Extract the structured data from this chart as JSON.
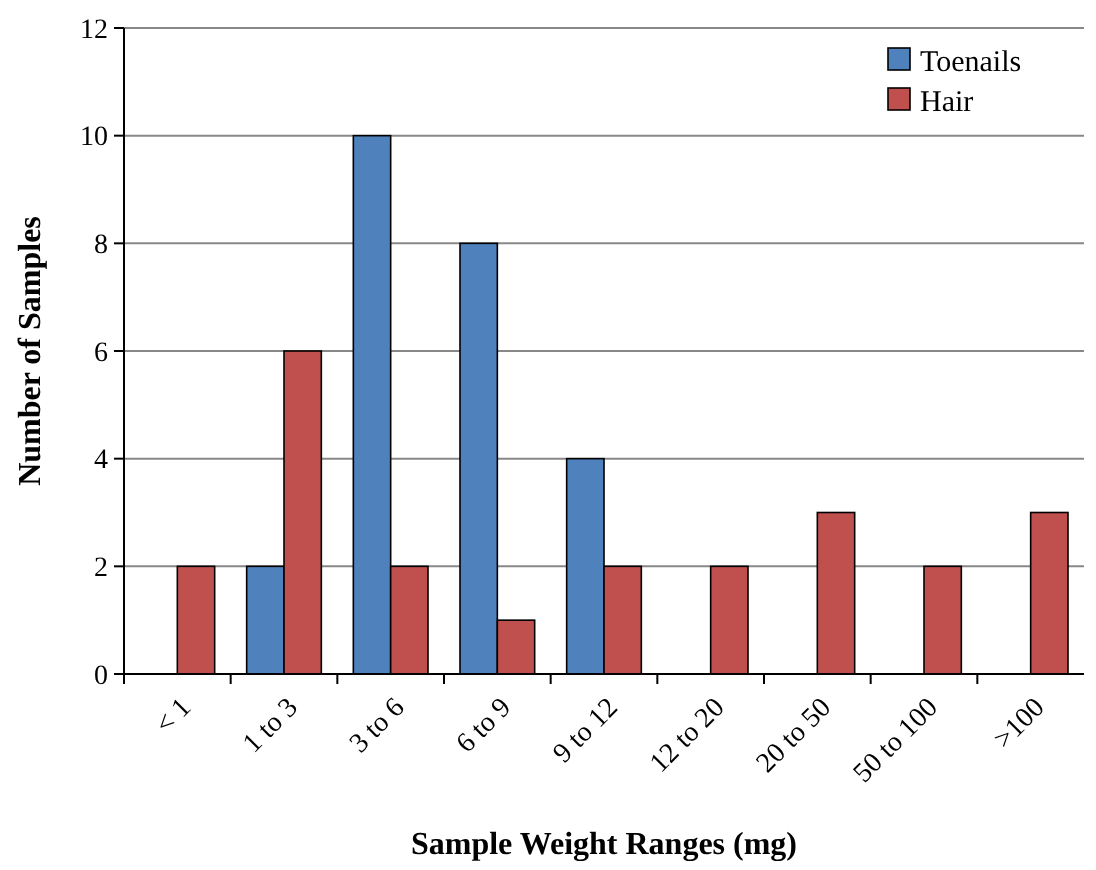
{
  "chart_data": {
    "type": "bar",
    "xlabel": "Sample Weight Ranges (mg)",
    "ylabel": "Number of Samples",
    "categories": [
      "< 1",
      "1 to 3",
      "3 to 6",
      "6 to 9",
      "9 to 12",
      "12 to 20",
      "20 to 50",
      "50 to 100",
      ">100"
    ],
    "series": [
      {
        "name": "Toenails",
        "color": "#4f81bd",
        "values": [
          0,
          2,
          10,
          8,
          4,
          0,
          0,
          0,
          0
        ]
      },
      {
        "name": "Hair",
        "color": "#c0504d",
        "values": [
          2,
          6,
          2,
          1,
          2,
          2,
          3,
          2,
          3
        ]
      }
    ],
    "ylim": [
      0,
      12
    ],
    "yticks": [
      0,
      2,
      4,
      6,
      8,
      10,
      12
    ],
    "grid": "y",
    "legend": "top right"
  }
}
